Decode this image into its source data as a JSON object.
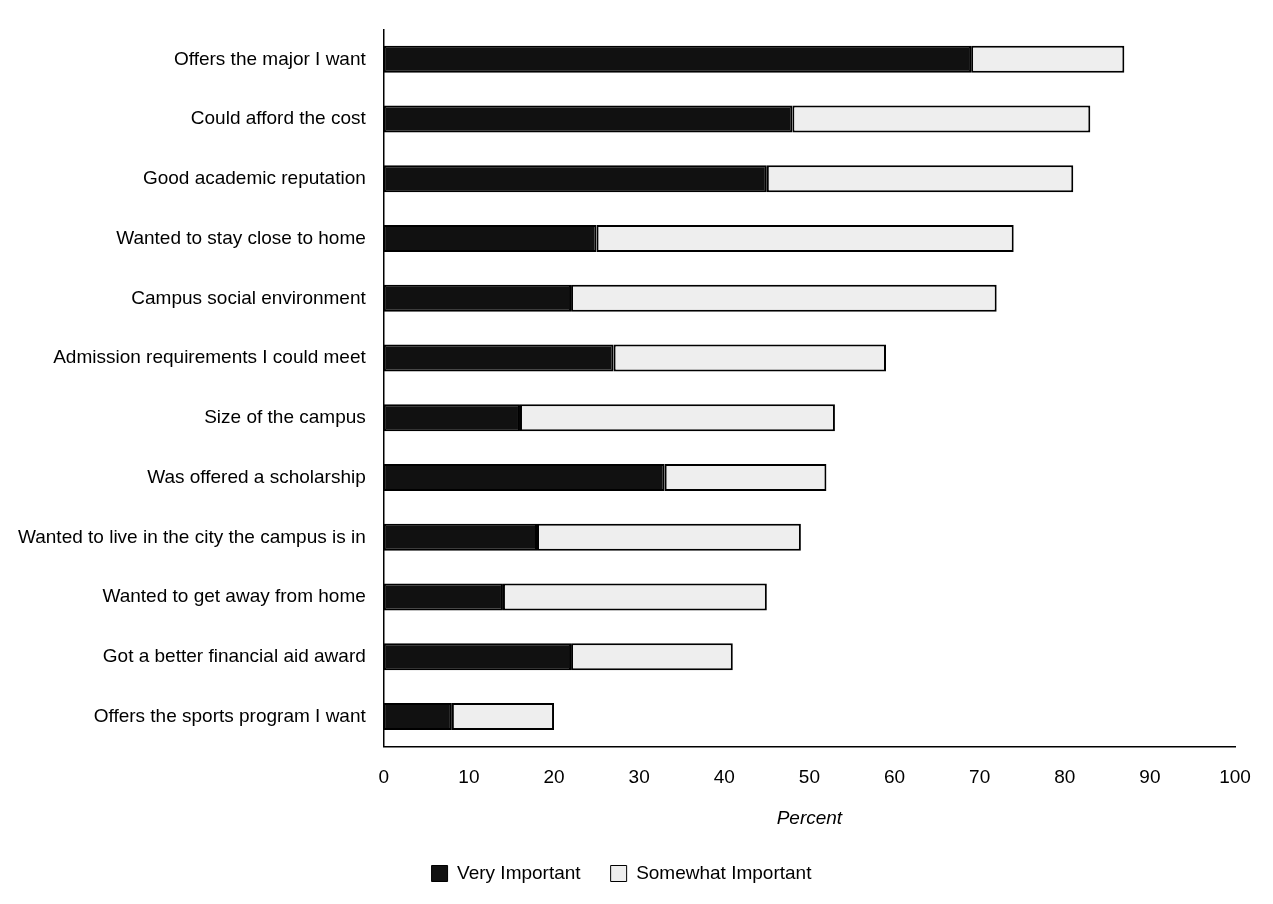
{
  "chart_data": {
    "type": "bar",
    "orientation": "horizontal",
    "stacked": true,
    "categories": [
      "Offers the major I want",
      "Could afford the cost",
      "Good academic reputation",
      "Wanted to stay close to home",
      "Campus social environment",
      "Admission requirements I could meet",
      "Size of the campus",
      "Was offered a scholarship",
      "Wanted to live in the city the campus is in",
      "Wanted to get away from home",
      "Got a better financial aid award",
      "Offers the sports program I want"
    ],
    "series": [
      {
        "name": "Very Important",
        "color": "#111111",
        "values": [
          69,
          48,
          45,
          25,
          22,
          27,
          16,
          33,
          18,
          14,
          22,
          8
        ]
      },
      {
        "name": "Somewhat Important",
        "color": "#eeeeee",
        "values": [
          18,
          35,
          36,
          49,
          50,
          32,
          37,
          19,
          31,
          31,
          19,
          12
        ]
      }
    ],
    "xlabel": "Percent",
    "xlim": [
      0,
      100
    ],
    "xticks": [
      0,
      10,
      20,
      30,
      40,
      50,
      60,
      70,
      80,
      90,
      100
    ],
    "grid": false,
    "legend": "bottom"
  }
}
